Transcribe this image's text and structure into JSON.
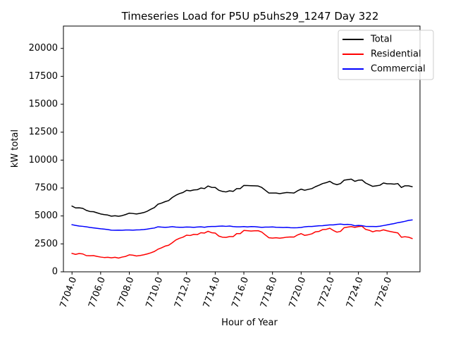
{
  "chart_data": {
    "type": "line",
    "title": "Timeseries Load for P5U p5uhs29_1247  Day 322",
    "xlabel": "Hour of Year",
    "ylabel": "kW total",
    "xlim": [
      7703.4,
      7728.3
    ],
    "ylim": [
      0,
      22000
    ],
    "xticks": [
      7704,
      7706,
      7708,
      7710,
      7712,
      7714,
      7716,
      7718,
      7720,
      7722,
      7724,
      7726
    ],
    "xtick_labels": [
      "7704.0",
      "7706.0",
      "7708.0",
      "7710.0",
      "7712.0",
      "7714.0",
      "7716.0",
      "7718.0",
      "7720.0",
      "7722.0",
      "7724.0",
      "7726.0"
    ],
    "yticks": [
      0,
      2500,
      5000,
      7500,
      10000,
      12500,
      15000,
      17500,
      20000
    ],
    "ytick_labels": [
      "0",
      "2500",
      "5000",
      "7500",
      "10000",
      "12500",
      "15000",
      "17500",
      "20000"
    ],
    "legend_position": "top-right",
    "x": [
      7704.0,
      7704.25,
      7704.5,
      7704.75,
      7705.0,
      7705.25,
      7705.5,
      7705.75,
      7706.0,
      7706.25,
      7706.5,
      7706.75,
      7707.0,
      7707.25,
      7707.5,
      7707.75,
      7708.0,
      7708.25,
      7708.5,
      7708.75,
      7709.0,
      7709.25,
      7709.5,
      7709.75,
      7710.0,
      7710.25,
      7710.5,
      7710.75,
      7711.0,
      7711.25,
      7711.5,
      7711.75,
      7712.0,
      7712.25,
      7712.5,
      7712.75,
      7713.0,
      7713.25,
      7713.5,
      7713.75,
      7714.0,
      7714.25,
      7714.5,
      7714.75,
      7715.0,
      7715.25,
      7715.5,
      7715.75,
      7716.0,
      7716.25,
      7716.5,
      7716.75,
      7717.0,
      7717.25,
      7717.5,
      7717.75,
      7718.0,
      7718.25,
      7718.5,
      7718.75,
      7719.0,
      7719.25,
      7719.5,
      7719.75,
      7720.0,
      7720.25,
      7720.5,
      7720.75,
      7721.0,
      7721.25,
      7721.5,
      7721.75,
      7722.0,
      7722.25,
      7722.5,
      7722.75,
      7723.0,
      7723.25,
      7723.5,
      7723.75,
      7724.0,
      7724.25,
      7724.5,
      7724.75,
      7725.0,
      7725.25,
      7725.5,
      7725.75,
      7726.0,
      7726.25,
      7726.5,
      7726.75,
      7727.0,
      7727.25,
      7727.5,
      7727.75
    ],
    "series": [
      {
        "name": "Total",
        "color": "#000000",
        "values": [
          5880,
          5720,
          5730,
          5680,
          5500,
          5400,
          5380,
          5280,
          5180,
          5120,
          5080,
          4980,
          5020,
          4970,
          5030,
          5130,
          5250,
          5220,
          5180,
          5230,
          5300,
          5420,
          5600,
          5750,
          6050,
          6150,
          6280,
          6380,
          6650,
          6850,
          7000,
          7100,
          7300,
          7250,
          7330,
          7350,
          7500,
          7450,
          7680,
          7560,
          7550,
          7300,
          7200,
          7150,
          7250,
          7200,
          7450,
          7450,
          7730,
          7720,
          7710,
          7700,
          7680,
          7550,
          7300,
          7050,
          7050,
          7050,
          7000,
          7050,
          7100,
          7080,
          7050,
          7250,
          7400,
          7300,
          7380,
          7450,
          7620,
          7750,
          7900,
          7980,
          8100,
          7900,
          7800,
          7900,
          8200,
          8250,
          8300,
          8100,
          8200,
          8220,
          7950,
          7800,
          7650,
          7700,
          7750,
          7950,
          7880,
          7880,
          7850,
          7900,
          7550,
          7700,
          7700,
          7620
        ]
      },
      {
        "name": "Residential",
        "color": "#ff0000",
        "values": [
          1650,
          1560,
          1640,
          1600,
          1450,
          1430,
          1450,
          1380,
          1320,
          1280,
          1300,
          1250,
          1300,
          1230,
          1320,
          1380,
          1520,
          1490,
          1420,
          1460,
          1520,
          1600,
          1700,
          1820,
          2020,
          2150,
          2300,
          2380,
          2600,
          2850,
          3000,
          3100,
          3280,
          3250,
          3350,
          3330,
          3500,
          3470,
          3630,
          3500,
          3470,
          3200,
          3100,
          3080,
          3150,
          3150,
          3420,
          3420,
          3700,
          3680,
          3650,
          3670,
          3680,
          3560,
          3300,
          3050,
          3020,
          3050,
          3010,
          3050,
          3100,
          3120,
          3110,
          3300,
          3420,
          3260,
          3320,
          3400,
          3580,
          3620,
          3780,
          3800,
          3900,
          3700,
          3550,
          3620,
          3950,
          4000,
          4050,
          3980,
          4050,
          4080,
          3800,
          3720,
          3580,
          3680,
          3660,
          3760,
          3670,
          3600,
          3540,
          3480,
          3100,
          3140,
          3100,
          2980
        ]
      },
      {
        "name": "Commercial",
        "color": "#0000ff",
        "values": [
          4220,
          4150,
          4100,
          4070,
          4030,
          3970,
          3930,
          3890,
          3850,
          3820,
          3780,
          3730,
          3720,
          3730,
          3720,
          3740,
          3740,
          3730,
          3750,
          3760,
          3780,
          3820,
          3880,
          3920,
          4030,
          4000,
          3980,
          4000,
          4040,
          4000,
          3990,
          3990,
          4010,
          4000,
          3980,
          4010,
          4030,
          3990,
          4040,
          4060,
          4060,
          4080,
          4100,
          4070,
          4100,
          4050,
          4030,
          4030,
          4050,
          4020,
          4050,
          4040,
          4010,
          3980,
          4000,
          4000,
          4020,
          3990,
          3980,
          3960,
          3980,
          3950,
          3940,
          3950,
          3970,
          4030,
          4060,
          4060,
          4090,
          4120,
          4130,
          4170,
          4200,
          4200,
          4250,
          4270,
          4230,
          4250,
          4220,
          4120,
          4150,
          4130,
          4070,
          4060,
          4060,
          4050,
          4080,
          4140,
          4200,
          4260,
          4320,
          4400,
          4450,
          4520,
          4600,
          4640
        ]
      }
    ]
  }
}
